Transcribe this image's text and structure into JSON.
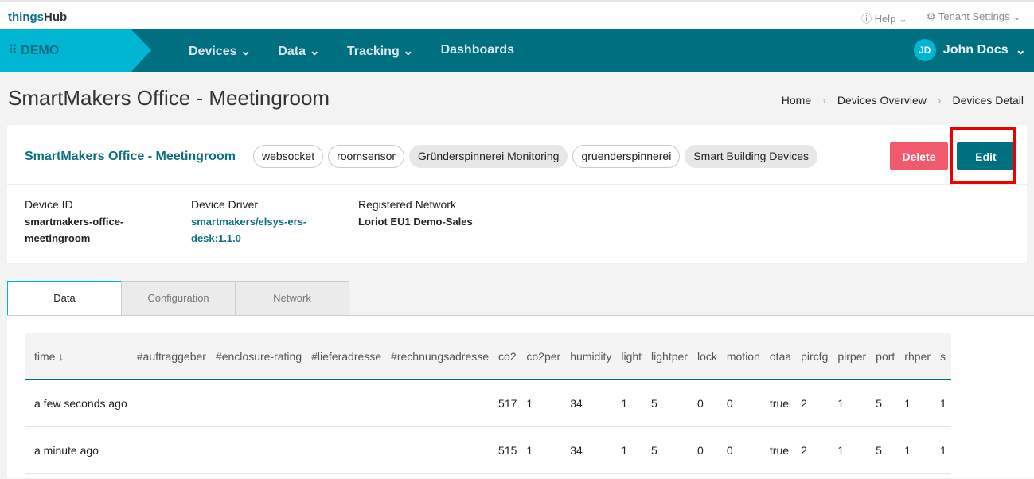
{
  "brand": {
    "part1": "things",
    "part2": "Hub"
  },
  "toplinks": [
    {
      "icon": "help-icon",
      "label": "Help"
    },
    {
      "icon": "gear-icon",
      "label": "Tenant Settings"
    }
  ],
  "nav": {
    "tenant": "DEMO",
    "items": [
      {
        "label": "Devices",
        "dropdown": true
      },
      {
        "label": "Data",
        "dropdown": true
      },
      {
        "label": "Tracking",
        "dropdown": true
      },
      {
        "label": "Dashboards",
        "dropdown": false
      }
    ],
    "user": {
      "initials": "JD",
      "name": "John Docs"
    }
  },
  "page": {
    "title": "SmartMakers Office - Meetingroom",
    "breadcrumb": [
      "Home",
      "Devices Overview",
      "Devices Detail"
    ]
  },
  "device": {
    "name": "SmartMakers Office - Meetingroom",
    "tags": [
      {
        "label": "websocket",
        "filled": false
      },
      {
        "label": "roomsensor",
        "filled": false
      },
      {
        "label": "Gründerspinnerei Monitoring",
        "filled": true
      },
      {
        "label": "gruenderspinnerei",
        "filled": false
      },
      {
        "label": "Smart Building Devices",
        "filled": true
      }
    ],
    "delete_label": "Delete",
    "edit_label": "Edit",
    "props": [
      {
        "label": "Device ID",
        "value": "smartmakers-office-meetingroom"
      },
      {
        "label": "Device Driver",
        "value": "smartmakers/elsys-ers-desk:1.1.0"
      },
      {
        "label": "Registered Network",
        "value": "Loriot EU1 Demo-Sales"
      }
    ]
  },
  "tabs": [
    {
      "label": "Data",
      "active": true
    },
    {
      "label": "Configuration",
      "active": false
    },
    {
      "label": "Network",
      "active": false
    }
  ],
  "table": {
    "columns": [
      "time ↓",
      "#auftraggeber",
      "#enclosure-rating",
      "#lieferadresse",
      "#rechnungsadresse",
      "co2",
      "co2per",
      "humidity",
      "light",
      "lightper",
      "lock",
      "motion",
      "otaa",
      "pircfg",
      "pirper",
      "port",
      "rhper",
      "s"
    ],
    "rows": [
      [
        "a few seconds ago",
        "",
        "",
        "",
        "",
        "517",
        "1",
        "34",
        "1",
        "5",
        "0",
        "0",
        "true",
        "2",
        "1",
        "5",
        "1",
        "1"
      ],
      [
        "a minute ago",
        "",
        "",
        "",
        "",
        "515",
        "1",
        "34",
        "1",
        "5",
        "0",
        "0",
        "true",
        "2",
        "1",
        "5",
        "1",
        "1"
      ]
    ]
  },
  "colors": {
    "nav": "#006f80",
    "accent": "#00b6d3",
    "delete": "#f05a6c",
    "highlight": "#e00000"
  }
}
